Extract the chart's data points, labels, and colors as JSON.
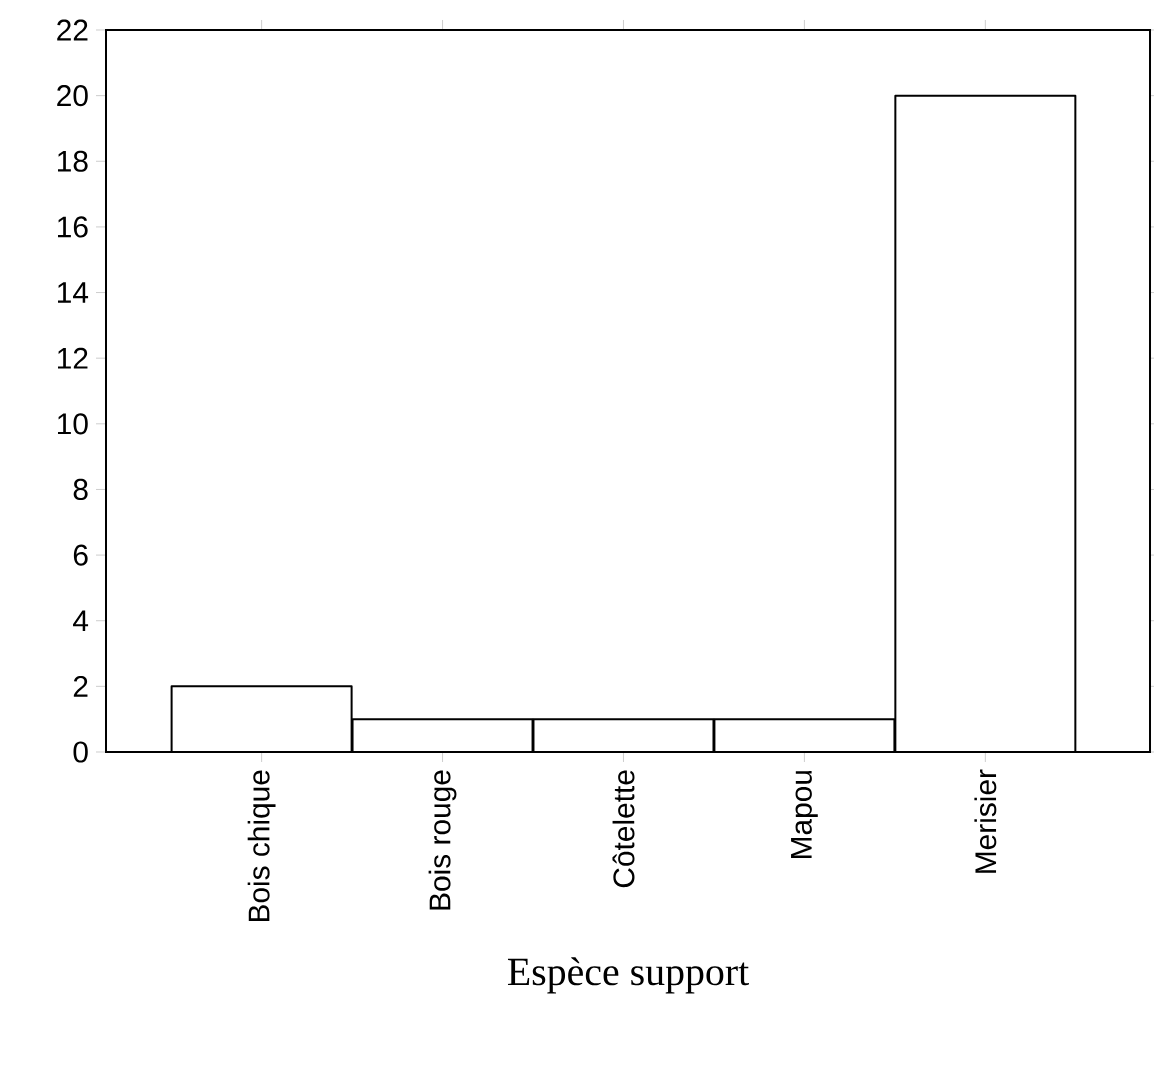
{
  "chart_data": {
    "type": "bar",
    "xlabel": "Espèce support",
    "categories": [
      "Bois chique",
      "Bois rouge",
      "Côtelette",
      "Mapou",
      "Merisier"
    ],
    "values": [
      2,
      1,
      1,
      1,
      20
    ],
    "color": "#ffffff",
    "ylim": [
      0,
      22
    ],
    "yticks": [
      0,
      2,
      4,
      6,
      8,
      10,
      12,
      14,
      16,
      18,
      20,
      22
    ],
    "grid": false
  }
}
